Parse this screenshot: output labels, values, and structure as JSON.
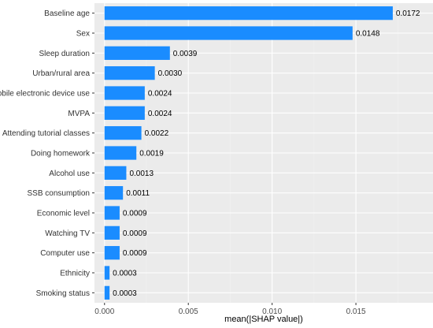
{
  "chart_data": {
    "type": "bar",
    "orientation": "horizontal",
    "categories": [
      "Baseline age",
      "Sex",
      "Sleep duration",
      "Urban/rural area",
      "Mobile electronic device use",
      "MVPA",
      "Attending tutorial classes",
      "Doing homework",
      "Alcohol use",
      "SSB consumption",
      "Economic level",
      "Watching TV",
      "Computer use",
      "Ethnicity",
      "Smoking status"
    ],
    "values": [
      0.0172,
      0.0148,
      0.0039,
      0.003,
      0.0024,
      0.0024,
      0.0022,
      0.0019,
      0.0013,
      0.0011,
      0.0009,
      0.0009,
      0.0009,
      0.0003,
      0.0003
    ],
    "data_labels": [
      "0.0172",
      "0.0148",
      "0.0039",
      "0.0030",
      "0.0024",
      "0.0024",
      "0.0022",
      "0.0019",
      "0.0013",
      "0.0011",
      "0.0009",
      "0.0009",
      "0.0009",
      "0.0003",
      "0.0003"
    ],
    "title": "",
    "xlabel": "mean(|SHAP value|)",
    "ylabel": "",
    "xlim": [
      -0.0006,
      0.0196
    ],
    "x_ticks": [
      0,
      0.005,
      0.01,
      0.015
    ],
    "x_tick_labels": [
      "0.000",
      "0.005",
      "0.010",
      "0.015"
    ],
    "grid": true,
    "legend": "none",
    "colors": {
      "bar": "#1a8cff",
      "panel_background": "#ebebeb",
      "grid_major": "#ffffff",
      "grid_minor": "#f2f2f2"
    }
  }
}
